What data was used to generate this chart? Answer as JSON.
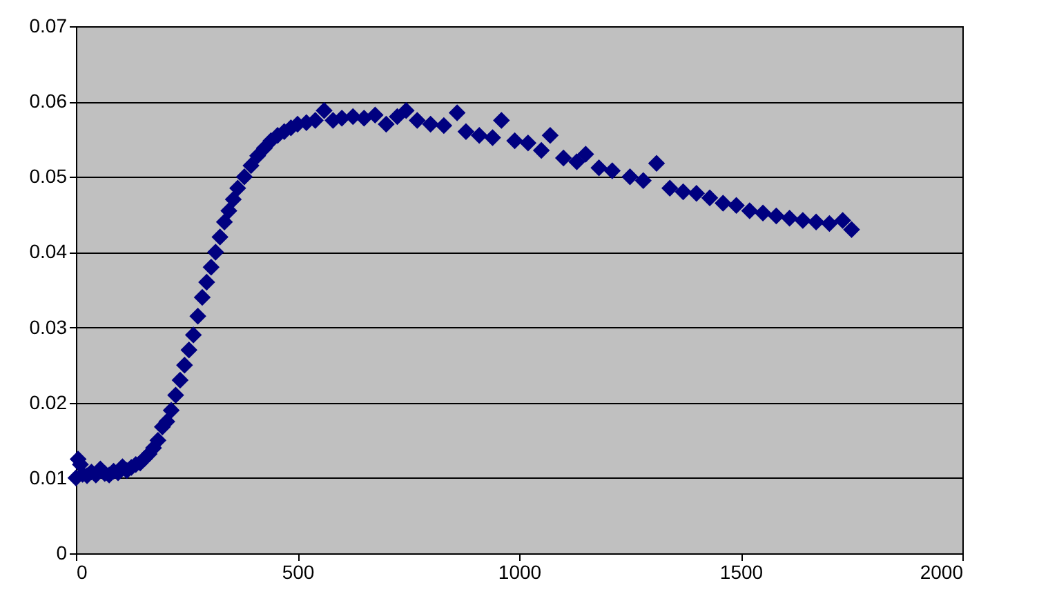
{
  "chart_data": {
    "type": "scatter",
    "marker": "diamond",
    "grid": "y",
    "xlim": [
      0,
      2000
    ],
    "xticks": [
      0,
      500,
      1000,
      1500,
      2000
    ],
    "ylim": [
      0,
      0.07
    ],
    "yticks": [
      0,
      0.01,
      0.02,
      0.03,
      0.04,
      0.05,
      0.06,
      0.07
    ],
    "x": [
      0,
      5,
      10,
      15,
      25,
      35,
      45,
      55,
      65,
      75,
      85,
      95,
      105,
      115,
      125,
      135,
      145,
      155,
      165,
      175,
      185,
      195,
      205,
      215,
      225,
      235,
      245,
      255,
      265,
      275,
      285,
      295,
      305,
      315,
      325,
      335,
      345,
      355,
      365,
      380,
      395,
      410,
      425,
      440,
      455,
      470,
      485,
      500,
      520,
      540,
      560,
      580,
      600,
      625,
      650,
      675,
      700,
      725,
      745,
      770,
      800,
      830,
      860,
      880,
      910,
      940,
      960,
      990,
      1020,
      1050,
      1070,
      1100,
      1130,
      1150,
      1180,
      1210,
      1250,
      1280,
      1310,
      1340,
      1370,
      1400,
      1430,
      1460,
      1490,
      1520,
      1550,
      1580,
      1610,
      1640,
      1670,
      1700,
      1730,
      1750
    ],
    "series": [
      {
        "color": "#000080",
        "values": [
          0.01,
          0.0125,
          0.0118,
          0.0105,
          0.0103,
          0.0108,
          0.0104,
          0.0112,
          0.0106,
          0.0104,
          0.0109,
          0.0107,
          0.0115,
          0.011,
          0.0114,
          0.0118,
          0.012,
          0.0126,
          0.0132,
          0.014,
          0.015,
          0.0168,
          0.0175,
          0.019,
          0.021,
          0.023,
          0.025,
          0.027,
          0.029,
          0.0315,
          0.034,
          0.036,
          0.038,
          0.04,
          0.042,
          0.044,
          0.0455,
          0.047,
          0.0485,
          0.05,
          0.0515,
          0.0528,
          0.0538,
          0.0548,
          0.0555,
          0.056,
          0.0565,
          0.057,
          0.0572,
          0.0575,
          0.0588,
          0.0575,
          0.0578,
          0.058,
          0.0578,
          0.0582,
          0.057,
          0.058,
          0.0588,
          0.0575,
          0.057,
          0.0568,
          0.0585,
          0.056,
          0.0555,
          0.0552,
          0.0575,
          0.0548,
          0.0545,
          0.0535,
          0.0555,
          0.0525,
          0.052,
          0.053,
          0.0512,
          0.0508,
          0.05,
          0.0495,
          0.0518,
          0.0485,
          0.048,
          0.0478,
          0.0472,
          0.0465,
          0.0462,
          0.0455,
          0.0452,
          0.0448,
          0.0445,
          0.0442,
          0.044,
          0.0438,
          0.0442,
          0.043
        ]
      }
    ]
  }
}
